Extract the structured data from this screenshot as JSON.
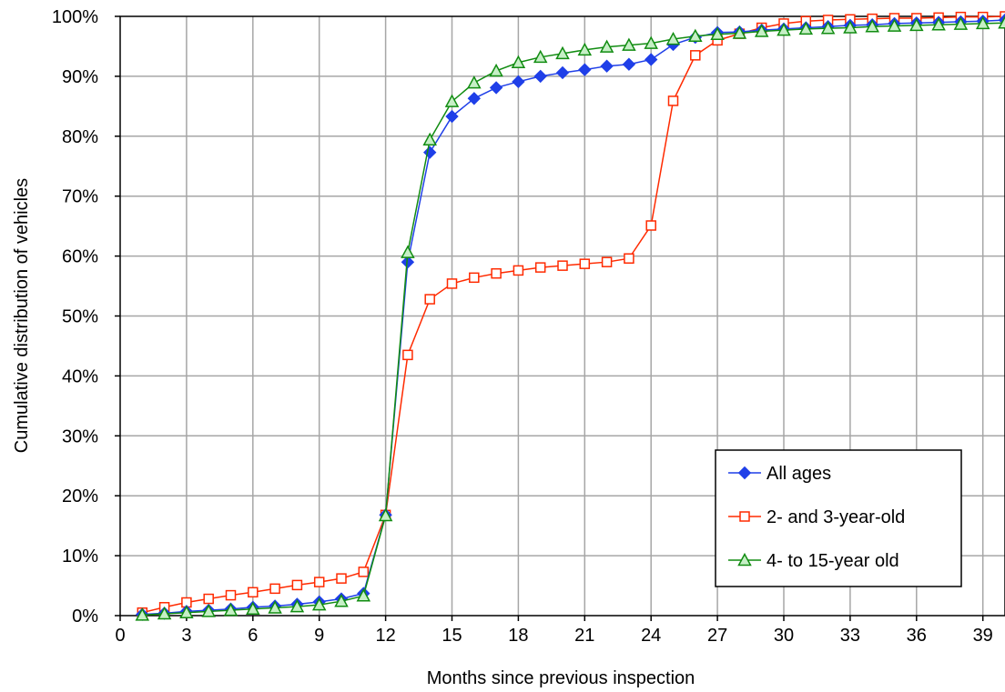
{
  "chart_data": {
    "type": "line",
    "title": "",
    "xlabel": "Months since previous inspection",
    "ylabel": "Cumulative distribution of vehicles",
    "xlim": [
      0,
      40
    ],
    "ylim": [
      0,
      100
    ],
    "x_ticks": [
      0,
      3,
      6,
      9,
      12,
      15,
      18,
      21,
      24,
      27,
      30,
      33,
      36,
      39
    ],
    "x_tick_labels": [
      "0",
      "3",
      "6",
      "9",
      "12",
      "15",
      "18",
      "21",
      "24",
      "27",
      "30",
      "33",
      "36",
      "39"
    ],
    "y_ticks": [
      0,
      10,
      20,
      30,
      40,
      50,
      60,
      70,
      80,
      90,
      100
    ],
    "y_tick_labels": [
      "0%",
      "10%",
      "20%",
      "30%",
      "40%",
      "50%",
      "60%",
      "70%",
      "80%",
      "90%",
      "100%"
    ],
    "grid": true,
    "legend_position": "bottom-right",
    "x": [
      1,
      2,
      3,
      4,
      5,
      6,
      7,
      8,
      9,
      10,
      11,
      12,
      13,
      14,
      15,
      16,
      17,
      18,
      19,
      20,
      21,
      22,
      23,
      24,
      25,
      26,
      27,
      28,
      29,
      30,
      31,
      32,
      33,
      34,
      35,
      36,
      37,
      38,
      39,
      40
    ],
    "series": [
      {
        "name": "All ages",
        "color": "#1f3fe8",
        "marker": "diamond-filled",
        "values": [
          0.2,
          0.4,
          0.7,
          0.9,
          1.1,
          1.4,
          1.6,
          1.9,
          2.3,
          2.8,
          3.7,
          16.8,
          59.0,
          77.3,
          83.3,
          86.3,
          88.1,
          89.1,
          90.0,
          90.6,
          91.1,
          91.7,
          92.0,
          92.8,
          95.3,
          96.5,
          97.3,
          97.4,
          97.7,
          97.9,
          98.1,
          98.3,
          98.5,
          98.6,
          98.8,
          98.9,
          99.0,
          99.1,
          99.2,
          99.4
        ]
      },
      {
        "name": "2- and 3-year-old",
        "color": "#ff2a00",
        "marker": "square-open",
        "values": [
          0.5,
          1.4,
          2.2,
          2.8,
          3.4,
          3.9,
          4.5,
          5.1,
          5.6,
          6.2,
          7.3,
          16.8,
          43.5,
          52.8,
          55.4,
          56.4,
          57.1,
          57.6,
          58.1,
          58.4,
          58.7,
          59.0,
          59.6,
          65.1,
          85.9,
          93.5,
          96.0,
          97.1,
          98.1,
          98.8,
          99.2,
          99.4,
          99.5,
          99.6,
          99.7,
          99.7,
          99.8,
          99.9,
          99.9,
          100.0
        ]
      },
      {
        "name": "4- to 15-year old",
        "color": "#118c11",
        "marker": "triangle-open",
        "values": [
          0.1,
          0.3,
          0.5,
          0.7,
          0.9,
          1.1,
          1.3,
          1.5,
          1.8,
          2.4,
          3.3,
          16.7,
          60.6,
          79.4,
          85.8,
          88.9,
          90.9,
          92.3,
          93.2,
          93.8,
          94.4,
          94.9,
          95.2,
          95.5,
          96.2,
          96.7,
          97.0,
          97.2,
          97.5,
          97.7,
          97.9,
          98.0,
          98.1,
          98.3,
          98.4,
          98.5,
          98.6,
          98.7,
          98.8,
          98.9
        ]
      }
    ]
  }
}
